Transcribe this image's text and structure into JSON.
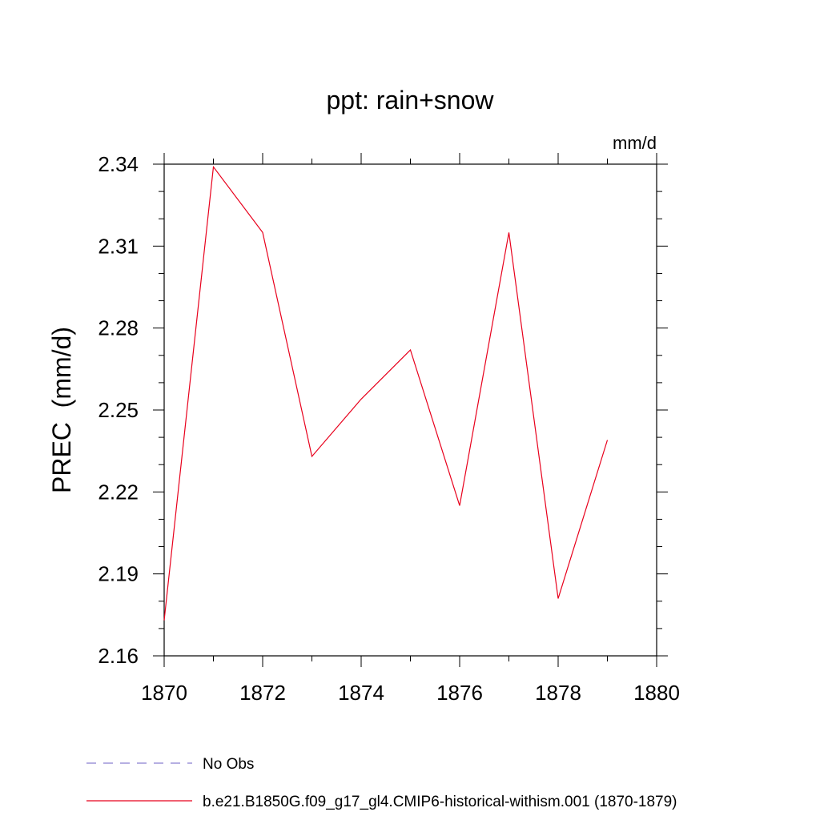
{
  "chart_data": {
    "type": "line",
    "title": "ppt: rain+snow",
    "units": "mm/d",
    "ylabel": "PREC  (mm/d)",
    "xlabel": "",
    "xlim": [
      1870,
      1880
    ],
    "ylim": [
      2.16,
      2.34
    ],
    "x_ticks": [
      "1870",
      "1872",
      "1874",
      "1876",
      "1878",
      "1880"
    ],
    "y_ticks": [
      "2.16",
      "2.19",
      "2.22",
      "2.25",
      "2.28",
      "2.31",
      "2.34"
    ],
    "grid": false,
    "legend_placement": "bottom",
    "series": [
      {
        "name": "No Obs",
        "style": "dashed",
        "color": "#8a7fd0",
        "x": [],
        "values": []
      },
      {
        "name": "b.e21.B1850G.f09_g17_gl4.CMIP6-historical-withism.001 (1870-1879)",
        "style": "solid",
        "color": "#e8001c",
        "x": [
          1870,
          1871,
          1872,
          1873,
          1874,
          1875,
          1876,
          1877,
          1878,
          1879
        ],
        "values": [
          2.173,
          2.339,
          2.315,
          2.233,
          2.254,
          2.272,
          2.215,
          2.315,
          2.181,
          2.239
        ]
      }
    ]
  }
}
